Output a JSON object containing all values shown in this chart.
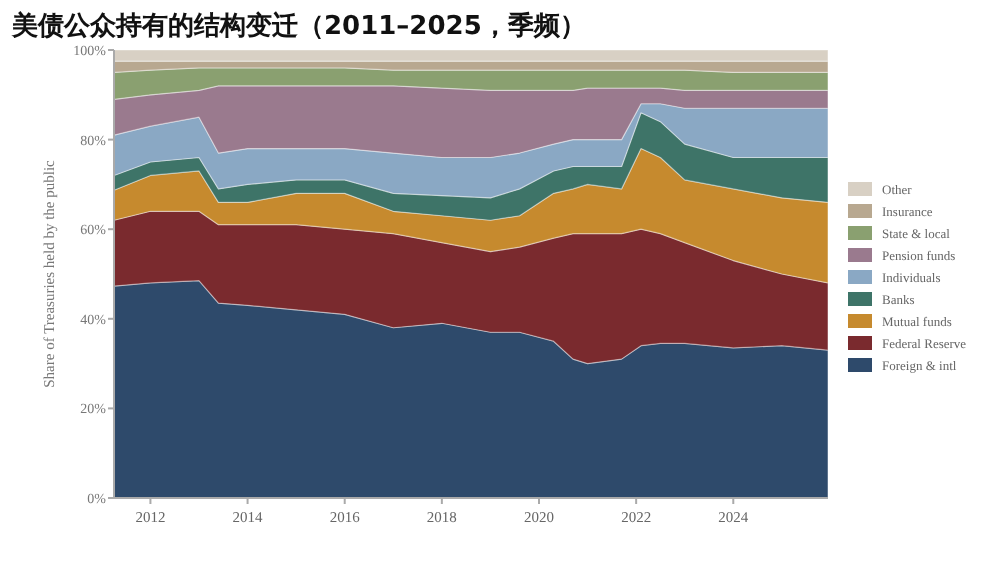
{
  "chart_data": {
    "type": "area",
    "stacked": true,
    "title": "美债公众持有的结构变迁（2011–2025，季频）",
    "ylabel": "Share of Treasuries held by the public",
    "x": [
      2011.25,
      2012,
      2013,
      2013.4,
      2014,
      2015,
      2016,
      2017,
      2018,
      2019,
      2019.6,
      2020.3,
      2020.7,
      2021,
      2021.7,
      2022.1,
      2022.5,
      2023,
      2024,
      2025,
      2025.95
    ],
    "xlim": [
      2011.25,
      2025.95
    ],
    "xticks": [
      2012,
      2014,
      2016,
      2018,
      2020,
      2022,
      2024
    ],
    "ylim": [
      0,
      100
    ],
    "yticks": [
      {
        "value": 0,
        "label": "0%"
      },
      {
        "value": 20,
        "label": "20%"
      },
      {
        "value": 40,
        "label": "40%"
      },
      {
        "value": 60,
        "label": "60%"
      },
      {
        "value": 80,
        "label": "80%"
      },
      {
        "value": 100,
        "label": "100%"
      }
    ],
    "legend": "right",
    "grid": false,
    "series": [
      {
        "name": "Foreign & intl",
        "color": "#2e4a6b",
        "values": [
          47.3,
          48,
          48.5,
          43.5,
          43,
          42,
          41,
          38,
          39,
          37,
          37,
          35,
          31,
          30,
          31,
          34,
          34.5,
          34.5,
          33.5,
          34,
          33
        ]
      },
      {
        "name": "Federal Reserve",
        "color": "#7a2a2e",
        "values": [
          14.7,
          16,
          15.5,
          17.5,
          18,
          19,
          19,
          21,
          18,
          18,
          19,
          23,
          28,
          29,
          28,
          26,
          24.5,
          22.5,
          19.5,
          16,
          15
        ]
      },
      {
        "name": "Mutual funds",
        "color": "#c68a2e",
        "values": [
          6.7,
          8,
          9,
          5,
          5,
          7,
          8,
          5,
          6,
          7,
          7,
          10,
          10,
          11,
          10,
          18,
          17,
          14,
          16,
          17,
          18
        ]
      },
      {
        "name": "Banks",
        "color": "#3e7468",
        "values": [
          3.3,
          3,
          3,
          3,
          4,
          3,
          3,
          4,
          4.5,
          5,
          6,
          5,
          5,
          4,
          5,
          8,
          8,
          8,
          7,
          9,
          10
        ]
      },
      {
        "name": "Individuals",
        "color": "#8aa8c4",
        "values": [
          9,
          8,
          9,
          8,
          8,
          7,
          7,
          9,
          8.5,
          9,
          8,
          6,
          6,
          6,
          6,
          2,
          4,
          8,
          11,
          11,
          11
        ]
      },
      {
        "name": "Pension funds",
        "color": "#9a7a8e",
        "values": [
          8,
          7,
          6,
          15,
          14,
          14,
          14,
          15,
          15.5,
          15,
          14,
          12,
          11,
          11.5,
          11.5,
          3.5,
          3.5,
          4,
          4,
          4,
          4
        ]
      },
      {
        "name": "State & local",
        "color": "#8aa070",
        "values": [
          6,
          5.5,
          5,
          4,
          4,
          4,
          4,
          3.5,
          4,
          4.5,
          4.5,
          4.5,
          4.5,
          4,
          4,
          4,
          4,
          4.5,
          4,
          4,
          4
        ]
      },
      {
        "name": "Insurance",
        "color": "#b8a890",
        "values": [
          2.5,
          2,
          1.5,
          1.5,
          1.5,
          1.5,
          1.5,
          2,
          2,
          2,
          2,
          2,
          2,
          2,
          2,
          2,
          2,
          2,
          2.5,
          2.5,
          2.5
        ]
      },
      {
        "name": "Other",
        "color": "#d8d0c4",
        "values": [
          2.5,
          2.5,
          2.5,
          2.5,
          2.5,
          2.5,
          2.5,
          2.5,
          2.5,
          2.5,
          2.5,
          2.5,
          2.5,
          2.5,
          2.5,
          2.5,
          2.5,
          2.5,
          2.5,
          2.5,
          2.5
        ]
      }
    ]
  }
}
